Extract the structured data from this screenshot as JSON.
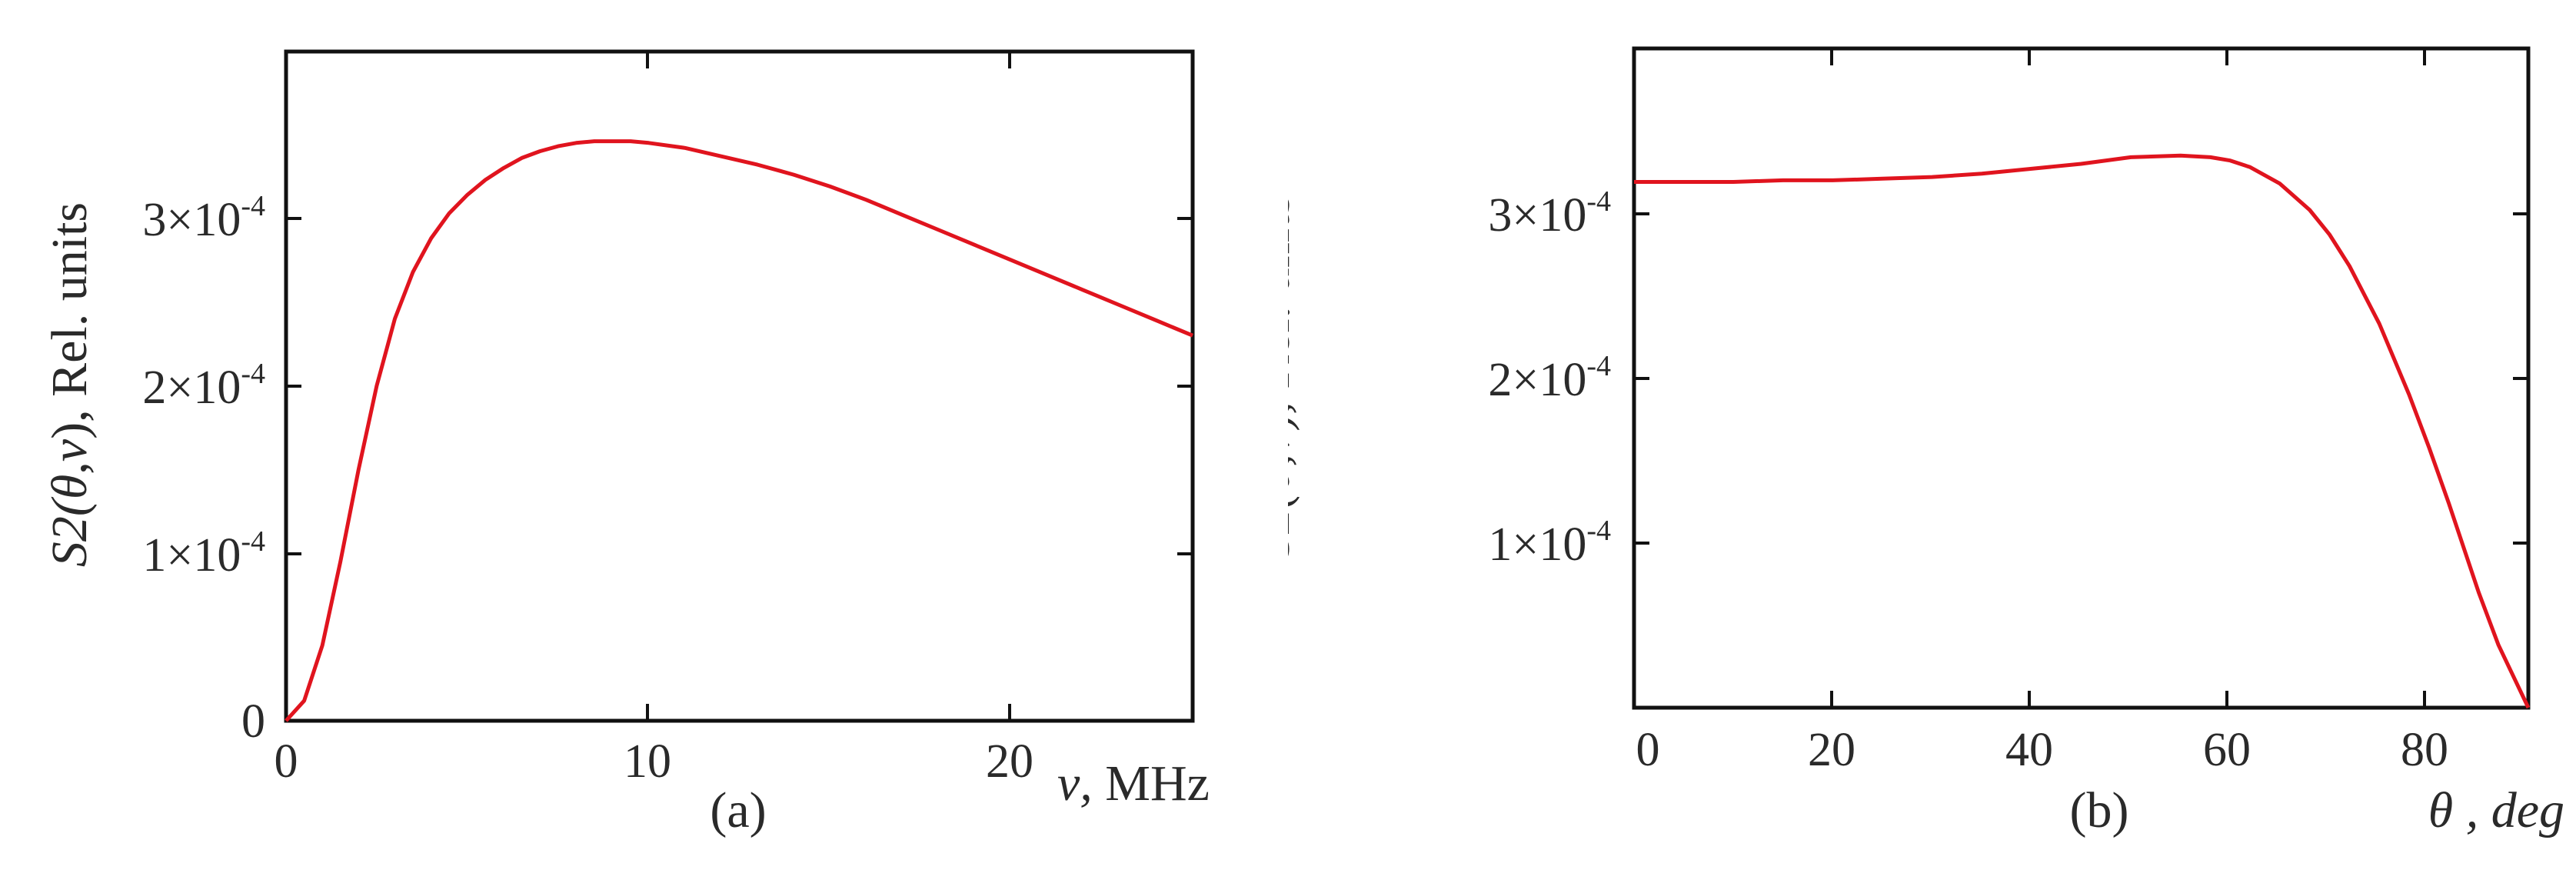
{
  "figure": {
    "panels": [
      {
        "id": "a",
        "caption": "(a)",
        "ylabel_prefix": "S2(",
        "ylabel_theta": "θ",
        "ylabel_mid": ",",
        "ylabel_nu": "ν",
        "ylabel_suffix": "), Rel. units",
        "xlabel_var": "ν,",
        "xlabel_unit": " MHz",
        "xticks": [
          "0",
          "10",
          "20"
        ],
        "yticks": [
          {
            "mant": "0",
            "exp": ""
          },
          {
            "mant": "1×10",
            "exp": "-4"
          },
          {
            "mant": "2×10",
            "exp": "-4"
          },
          {
            "mant": "3×10",
            "exp": "-4"
          }
        ]
      },
      {
        "id": "b",
        "caption": "(b)",
        "ylabel_prefix": "S2(",
        "ylabel_theta": "θ",
        "ylabel_mid": ",",
        "ylabel_nu": "ν",
        "ylabel_suffix": "), Rel. units",
        "xlabel_var": "θ",
        "xlabel_unit": " , deg",
        "xticks": [
          "0",
          "20",
          "40",
          "60",
          "80"
        ],
        "yticks": [
          {
            "mant": "1×10",
            "exp": "-4"
          },
          {
            "mant": "2×10",
            "exp": "-4"
          },
          {
            "mant": "3×10",
            "exp": "-4"
          }
        ]
      }
    ],
    "line_color": "#e0141e",
    "axis_color": "#111111"
  },
  "chart_data": [
    {
      "type": "line",
      "title": "(a)",
      "xlabel": "ν, MHz",
      "ylabel": "S2(θ,ν), Rel. units",
      "xlim": [
        0,
        25
      ],
      "ylim": [
        0,
        0.0004
      ],
      "xticks": [
        0,
        10,
        20
      ],
      "yticks": [
        0,
        0.0001,
        0.0002,
        0.0003
      ],
      "grid": false,
      "legend": null,
      "series": [
        {
          "name": "S2(θ,ν)",
          "color": "#e0141e",
          "x": [
            0,
            0.5,
            1,
            1.5,
            2,
            2.5,
            3,
            3.5,
            4,
            4.5,
            5,
            5.5,
            6,
            6.5,
            7,
            7.5,
            8,
            8.5,
            9,
            9.5,
            10,
            11,
            12,
            13,
            14,
            15,
            16,
            17,
            18,
            19,
            20,
            21,
            22,
            23,
            24,
            25
          ],
          "y": [
            0,
            1.2e-05,
            4.5e-05,
            9.5e-05,
            0.00015,
            0.0002,
            0.00024,
            0.000268,
            0.000288,
            0.000303,
            0.000314,
            0.000323,
            0.00033,
            0.000336,
            0.00034,
            0.000343,
            0.000345,
            0.000346,
            0.000346,
            0.000346,
            0.000345,
            0.000342,
            0.000337,
            0.000332,
            0.000326,
            0.000319,
            0.000311,
            0.000302,
            0.000293,
            0.000284,
            0.000275,
            0.000266,
            0.000257,
            0.000248,
            0.000239,
            0.00023
          ]
        }
      ]
    },
    {
      "type": "line",
      "title": "(b)",
      "xlabel": "θ, deg",
      "ylabel": "S2(θ,ν), Rel. units",
      "xlim": [
        0,
        90
      ],
      "ylim": [
        0,
        0.0004
      ],
      "xticks": [
        0,
        20,
        40,
        60,
        80
      ],
      "yticks": [
        0.0001,
        0.0002,
        0.0003
      ],
      "grid": false,
      "legend": null,
      "series": [
        {
          "name": "S2(θ,ν)",
          "color": "#e0141e",
          "x": [
            0,
            5,
            10,
            15,
            20,
            25,
            30,
            35,
            40,
            45,
            50,
            55,
            58,
            60,
            62,
            65,
            68,
            70,
            72,
            75,
            78,
            80,
            82,
            85,
            87,
            90
          ],
          "y": [
            0.000319,
            0.000319,
            0.000319,
            0.00032,
            0.00032,
            0.000321,
            0.000322,
            0.000324,
            0.000327,
            0.00033,
            0.000334,
            0.000335,
            0.000334,
            0.000332,
            0.000328,
            0.000318,
            0.000302,
            0.000287,
            0.000268,
            0.000233,
            0.00019,
            0.000158,
            0.000124,
            7e-05,
            3.8e-05,
            0.0
          ]
        }
      ]
    }
  ]
}
